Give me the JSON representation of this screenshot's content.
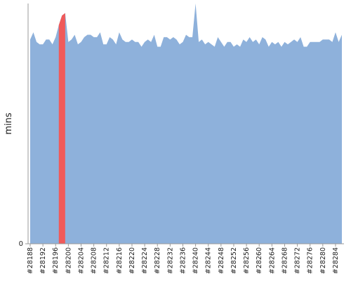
{
  "chart_data": {
    "type": "area",
    "y_label": "mins",
    "categories": [
      "#28188",
      null,
      null,
      null,
      "#28192",
      null,
      null,
      null,
      "#28196",
      null,
      null,
      null,
      "#28200",
      null,
      null,
      null,
      "#28204",
      null,
      null,
      null,
      "#28208",
      null,
      null,
      null,
      "#28212",
      null,
      null,
      null,
      "#28216",
      null,
      null,
      null,
      "#28220",
      null,
      null,
      null,
      "#28224",
      null,
      null,
      null,
      "#28228",
      null,
      null,
      null,
      "#28232",
      null,
      null,
      null,
      "#28236",
      null,
      null,
      null,
      "#28240",
      null,
      null,
      null,
      "#28244",
      null,
      null,
      null,
      "#28248",
      null,
      null,
      null,
      "#28252",
      null,
      null,
      null,
      "#28256",
      null,
      null,
      null,
      "#28260",
      null,
      null,
      null,
      "#28264",
      null,
      null,
      null,
      "#28268",
      null,
      null,
      null,
      "#28272",
      null,
      null,
      null,
      "#28276",
      null,
      null,
      null,
      "#28280",
      null,
      null,
      null,
      "#28284",
      null,
      null
    ],
    "series": [
      {
        "color": "#8eb1db",
        "values": [
          85,
          88,
          84,
          83,
          83,
          85,
          85,
          83,
          86,
          91,
          95,
          96,
          84,
          85,
          87,
          83,
          84,
          86,
          87,
          87,
          86,
          86,
          88,
          83,
          83,
          86,
          85,
          83,
          88,
          85,
          84,
          84,
          85,
          84,
          84,
          82,
          84,
          85,
          84,
          87,
          82,
          82,
          86,
          86,
          85,
          86,
          85,
          83,
          84,
          87,
          86,
          86,
          100,
          84,
          85,
          83,
          84,
          83,
          82,
          86,
          84,
          82,
          84,
          84,
          82,
          83,
          82,
          85,
          84,
          86,
          84,
          85,
          83,
          86,
          85,
          82,
          84,
          83,
          84,
          82,
          84,
          83,
          84,
          85,
          84,
          86,
          82,
          82,
          84,
          84,
          84,
          84,
          85,
          85,
          85,
          84,
          88,
          84,
          87
        ]
      },
      {
        "color": "#f05a5a",
        "values": [
          null,
          null,
          null,
          null,
          null,
          null,
          null,
          null,
          null,
          91,
          95,
          96,
          null,
          null,
          null,
          null,
          null,
          null,
          null,
          null,
          null,
          null,
          null,
          null,
          null,
          null,
          null,
          null,
          null,
          null,
          null,
          null,
          null,
          null,
          null,
          null,
          null,
          null,
          null,
          null,
          null,
          null,
          null,
          null,
          null,
          null,
          null,
          null,
          null,
          null,
          null,
          null,
          null,
          null,
          null,
          null,
          null,
          null,
          null,
          null,
          null,
          null,
          null,
          null,
          null,
          null,
          null,
          null,
          null,
          null,
          null,
          null,
          null,
          null,
          null,
          null,
          null,
          null,
          null,
          null,
          null,
          null,
          null,
          null,
          null,
          null,
          null,
          null,
          null,
          null,
          null,
          null,
          null,
          null,
          null,
          null,
          null,
          null,
          null
        ]
      }
    ],
    "ylim": [
      0,
      100
    ],
    "yticks": [
      0
    ]
  }
}
